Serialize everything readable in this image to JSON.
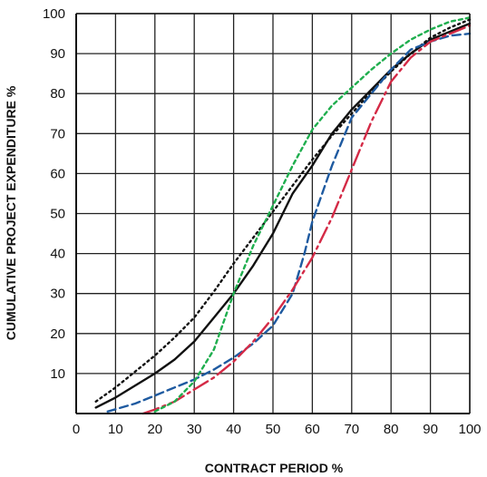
{
  "chart_data": {
    "type": "line",
    "title": "",
    "xlabel": "CONTRACT PERIOD %",
    "ylabel": "CUMULATIVE PROJECT  EXPENDITURE %",
    "xlim": [
      0,
      100
    ],
    "ylim": [
      0,
      100
    ],
    "xticks": [
      0,
      10,
      20,
      30,
      40,
      50,
      60,
      70,
      80,
      90,
      100
    ],
    "yticks": [
      10,
      20,
      30,
      40,
      50,
      60,
      70,
      80,
      90,
      100
    ],
    "grid": true,
    "series": [
      {
        "color": "#111111",
        "dash": "solid",
        "x": [
          5,
          10,
          15,
          20,
          25,
          30,
          35,
          40,
          45,
          50,
          55,
          60,
          65,
          70,
          75,
          80,
          85,
          90,
          95,
          100
        ],
        "y": [
          1.5,
          4,
          7,
          10,
          13.5,
          18,
          24,
          30,
          37,
          45,
          55,
          62,
          70,
          76,
          81,
          86,
          90,
          93.5,
          95.5,
          97.5
        ]
      },
      {
        "color": "#111111",
        "dash": "dotted",
        "x": [
          5,
          10,
          15,
          20,
          25,
          30,
          35,
          40,
          45,
          50,
          55,
          60,
          65,
          70,
          75,
          80,
          85,
          90,
          95,
          100
        ],
        "y": [
          3,
          6.5,
          10.5,
          14.5,
          19,
          24,
          30.5,
          37.5,
          44,
          50.5,
          57,
          63.5,
          69.5,
          75,
          80.5,
          85.5,
          90,
          94,
          96.5,
          98.5
        ]
      },
      {
        "color": "#1e5aa0",
        "dash": "dashed",
        "x": [
          8,
          15,
          20,
          25,
          30,
          35,
          40,
          45,
          50,
          55,
          58,
          60,
          65,
          70,
          75,
          80,
          85,
          90,
          95,
          100
        ],
        "y": [
          0.5,
          2.5,
          4.5,
          6.5,
          8.5,
          11,
          14,
          17.5,
          22,
          30,
          40,
          48,
          62,
          74,
          80,
          86,
          91,
          93,
          94.5,
          95
        ]
      },
      {
        "color": "#d42a46",
        "dash": "dashdot",
        "x": [
          17,
          20,
          25,
          30,
          35,
          40,
          45,
          50,
          55,
          60,
          65,
          70,
          75,
          80,
          85,
          90,
          95,
          100
        ],
        "y": [
          0,
          1,
          3,
          6,
          9,
          13,
          18,
          24,
          31,
          39,
          49,
          61,
          73,
          83,
          89,
          93,
          95,
          97
        ]
      },
      {
        "color": "#1fae4e",
        "dash": "dashed-short",
        "x": [
          20,
          25,
          30,
          35,
          40,
          45,
          50,
          55,
          60,
          65,
          70,
          75,
          80,
          85,
          90,
          95,
          100
        ],
        "y": [
          0.5,
          3,
          8,
          16,
          30,
          42,
          52,
          62,
          71,
          77,
          81.5,
          86,
          90,
          93.5,
          96,
          98,
          99
        ]
      }
    ]
  }
}
